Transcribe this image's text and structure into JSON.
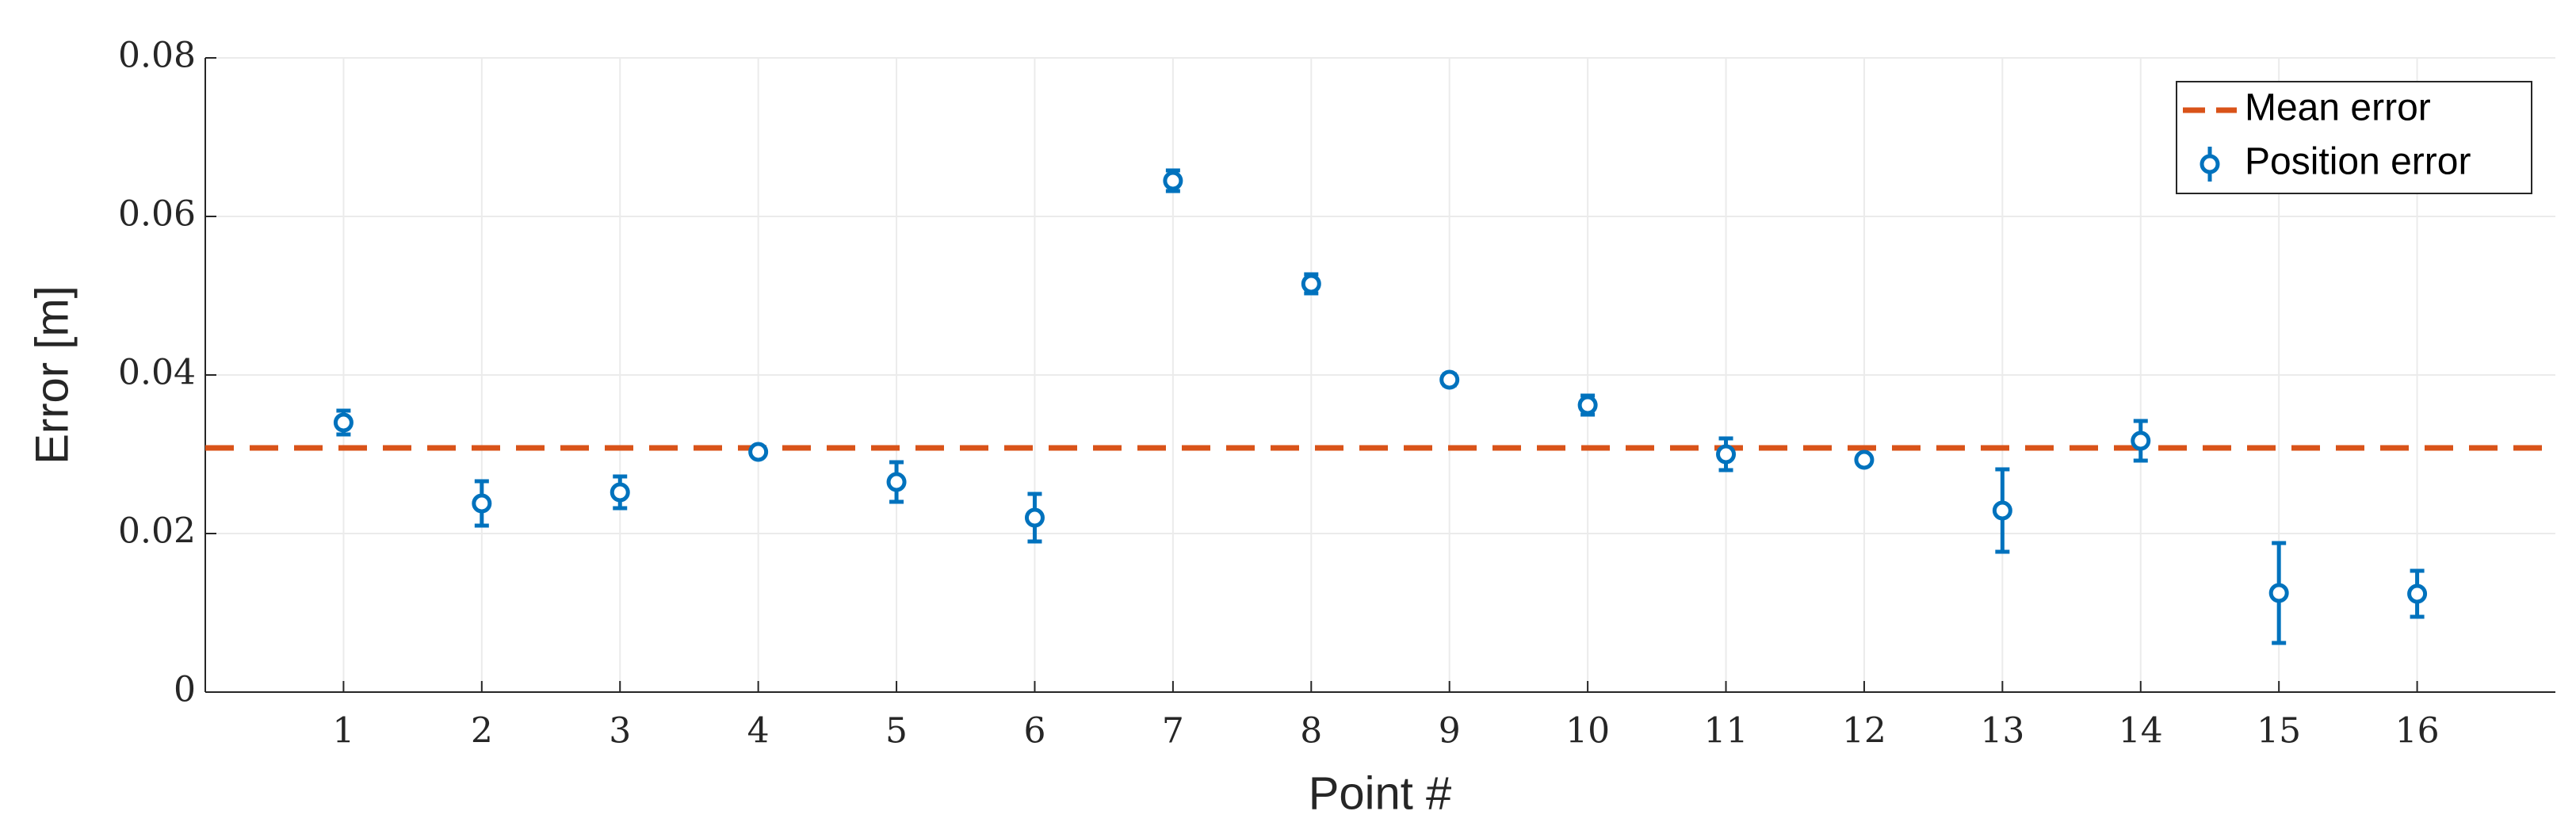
{
  "chart_data": {
    "type": "errorbar",
    "xlabel": "Point #",
    "ylabel": "Error [m]",
    "xlim": [
      0,
      17
    ],
    "xticks": [
      1,
      2,
      3,
      4,
      5,
      6,
      7,
      8,
      9,
      10,
      11,
      12,
      13,
      14,
      15,
      16
    ],
    "ylim": [
      0,
      0.08
    ],
    "yticks": [
      0,
      0.02,
      0.04,
      0.06,
      0.08
    ],
    "grid": true,
    "legend": "northeast",
    "series": [
      {
        "name": "Mean error",
        "kind": "hline",
        "dash": true,
        "color": "#d95319",
        "value": 0.0308
      },
      {
        "name": "Position error",
        "kind": "errorbar",
        "color": "#0072bd",
        "x": [
          1,
          2,
          3,
          4,
          5,
          6,
          7,
          8,
          9,
          10,
          11,
          12,
          13,
          14,
          15,
          16
        ],
        "values": [
          0.034,
          0.0238,
          0.0252,
          0.0303,
          0.0265,
          0.022,
          0.0645,
          0.0515,
          0.0394,
          0.0362,
          0.03,
          0.0293,
          0.0229,
          0.0317,
          0.0125,
          0.0124
        ],
        "errors": [
          0.0015,
          0.0028,
          0.002,
          0.0005,
          0.0025,
          0.003,
          0.0013,
          0.0012,
          0.0007,
          0.0012,
          0.002,
          0.0005,
          0.0052,
          0.0025,
          0.0063,
          0.0029
        ]
      }
    ]
  }
}
